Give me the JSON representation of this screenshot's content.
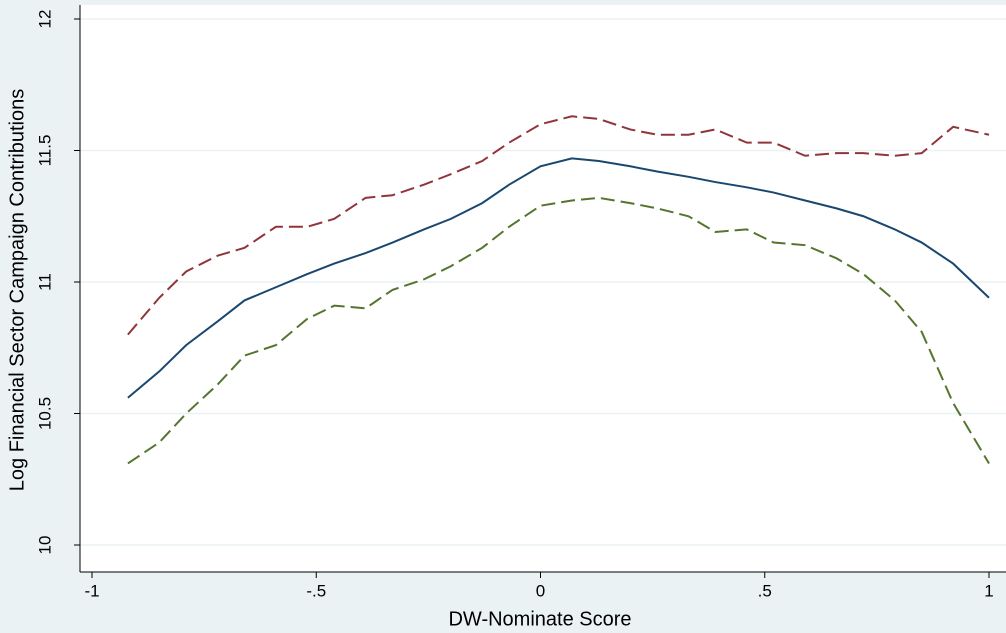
{
  "chart_data": {
    "type": "line",
    "x_label": "DW-Nominate Score",
    "y_label": "Log Financial Sector Campaign Contributions",
    "x": [
      -0.92,
      -0.85,
      -0.79,
      -0.72,
      -0.66,
      -0.59,
      -0.52,
      -0.46,
      -0.39,
      -0.33,
      -0.26,
      -0.2,
      -0.13,
      -0.07,
      0,
      0.07,
      0.13,
      0.2,
      0.26,
      0.33,
      0.39,
      0.46,
      0.52,
      0.59,
      0.66,
      0.72,
      0.79,
      0.85,
      0.92,
      1
    ],
    "series": [
      {
        "color": "#1a476f",
        "dash": "solid",
        "values": [
          10.56,
          10.66,
          10.76,
          10.85,
          10.93,
          10.98,
          11.03,
          11.07,
          11.11,
          11.15,
          11.2,
          11.24,
          11.3,
          11.37,
          11.44,
          11.47,
          11.46,
          11.44,
          11.42,
          11.4,
          11.38,
          11.36,
          11.34,
          11.31,
          11.28,
          11.25,
          11.2,
          11.15,
          11.07,
          10.94
        ]
      },
      {
        "color": "#90353b",
        "dash": "dashed",
        "values": [
          10.8,
          10.94,
          11.04,
          11.1,
          11.13,
          11.21,
          11.21,
          11.24,
          11.32,
          11.33,
          11.37,
          11.41,
          11.46,
          11.53,
          11.6,
          11.63,
          11.62,
          11.58,
          11.56,
          11.56,
          11.58,
          11.53,
          11.53,
          11.48,
          11.49,
          11.49,
          11.48,
          11.49,
          11.59,
          11.56
        ]
      },
      {
        "color": "#55752f",
        "dash": "dashed",
        "values": [
          10.31,
          10.39,
          10.5,
          10.61,
          10.72,
          10.76,
          10.86,
          10.91,
          10.9,
          10.97,
          11.01,
          11.06,
          11.13,
          11.21,
          11.29,
          11.31,
          11.32,
          11.3,
          11.28,
          11.25,
          11.19,
          11.2,
          11.15,
          11.14,
          11.09,
          11.03,
          10.93,
          10.81,
          10.54,
          10.31
        ]
      }
    ],
    "xlim": [
      -1,
      1
    ],
    "xticks": [
      {
        "value": -1,
        "label": "-1"
      },
      {
        "value": -0.5,
        "label": "-.5"
      },
      0,
      {
        "value": 0.5,
        "label": ".5"
      },
      1
    ],
    "ylim": [
      10,
      12
    ],
    "yticks": [
      10,
      10.5,
      11,
      11.5,
      12
    ],
    "grid": true
  }
}
